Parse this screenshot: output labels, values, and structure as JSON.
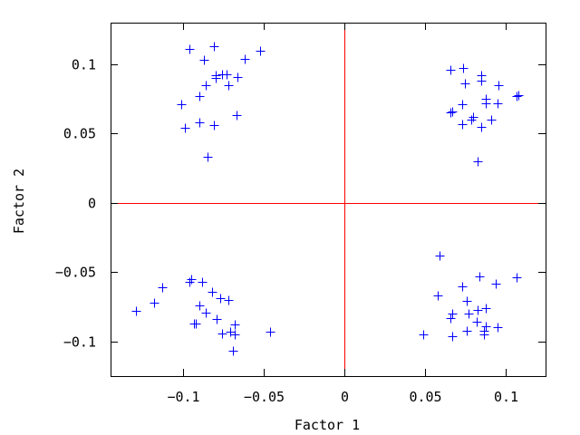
{
  "chart_data": {
    "type": "scatter",
    "title": "",
    "xlabel": "Factor 1",
    "ylabel": "Factor 2",
    "xlim": [
      -0.145,
      0.125
    ],
    "ylim": [
      -0.125,
      0.13
    ],
    "xticks": [
      {
        "value": -0.1,
        "label": "−0.1"
      },
      {
        "value": -0.05,
        "label": "−0.05"
      },
      {
        "value": 0,
        "label": "0"
      },
      {
        "value": 0.05,
        "label": "0.05"
      },
      {
        "value": 0.1,
        "label": "0.1"
      }
    ],
    "yticks": [
      {
        "value": 0.1,
        "label": "0.1"
      },
      {
        "value": 0.05,
        "label": "0.05"
      },
      {
        "value": 0,
        "label": "0"
      },
      {
        "value": -0.05,
        "label": "−0.05"
      },
      {
        "value": -0.1,
        "label": "−0.1"
      }
    ],
    "grid": false,
    "reference_lines": {
      "x": 0,
      "y": 0,
      "color": "#ff0000"
    },
    "marker": "+",
    "marker_color": "#0000ff",
    "series": [
      {
        "points": [
          [
            -0.096,
            0.111
          ],
          [
            -0.081,
            0.113
          ],
          [
            -0.052,
            0.11
          ],
          [
            -0.087,
            0.103
          ],
          [
            -0.062,
            0.104
          ],
          [
            -0.076,
            0.093
          ],
          [
            -0.073,
            0.093
          ],
          [
            -0.08,
            0.092
          ],
          [
            -0.066,
            0.091
          ],
          [
            -0.08,
            0.09
          ],
          [
            -0.086,
            0.085
          ],
          [
            -0.072,
            0.085
          ],
          [
            -0.09,
            0.077
          ],
          [
            -0.101,
            0.071
          ],
          [
            -0.067,
            0.063
          ],
          [
            -0.09,
            0.058
          ],
          [
            -0.099,
            0.054
          ],
          [
            -0.081,
            0.056
          ],
          [
            -0.085,
            0.033
          ],
          [
            0.066,
            0.096
          ],
          [
            0.074,
            0.097
          ],
          [
            0.085,
            0.092
          ],
          [
            0.085,
            0.088
          ],
          [
            0.075,
            0.086
          ],
          [
            0.096,
            0.085
          ],
          [
            0.107,
            0.077
          ],
          [
            0.108,
            0.078
          ],
          [
            0.088,
            0.075
          ],
          [
            0.073,
            0.071
          ],
          [
            0.088,
            0.072
          ],
          [
            0.095,
            0.072
          ],
          [
            0.067,
            0.066
          ],
          [
            0.066,
            0.065
          ],
          [
            0.08,
            0.062
          ],
          [
            0.079,
            0.06
          ],
          [
            0.091,
            0.06
          ],
          [
            0.073,
            0.057
          ],
          [
            0.085,
            0.055
          ],
          [
            0.083,
            0.03
          ],
          [
            -0.095,
            -0.055
          ],
          [
            -0.096,
            -0.057
          ],
          [
            -0.088,
            -0.057
          ],
          [
            -0.113,
            -0.061
          ],
          [
            -0.082,
            -0.064
          ],
          [
            -0.077,
            -0.069
          ],
          [
            -0.072,
            -0.07
          ],
          [
            -0.118,
            -0.072
          ],
          [
            -0.09,
            -0.074
          ],
          [
            -0.129,
            -0.078
          ],
          [
            -0.086,
            -0.079
          ],
          [
            -0.079,
            -0.084
          ],
          [
            -0.092,
            -0.087
          ],
          [
            -0.093,
            -0.087
          ],
          [
            -0.068,
            -0.088
          ],
          [
            -0.071,
            -0.093
          ],
          [
            -0.076,
            -0.094
          ],
          [
            -0.046,
            -0.093
          ],
          [
            -0.068,
            -0.095
          ],
          [
            -0.069,
            -0.107
          ],
          [
            0.059,
            -0.038
          ],
          [
            0.084,
            -0.053
          ],
          [
            0.107,
            -0.054
          ],
          [
            0.073,
            -0.06
          ],
          [
            0.094,
            -0.058
          ],
          [
            0.058,
            -0.067
          ],
          [
            0.076,
            -0.071
          ],
          [
            0.088,
            -0.076
          ],
          [
            0.083,
            -0.077
          ],
          [
            0.067,
            -0.08
          ],
          [
            0.066,
            -0.083
          ],
          [
            0.077,
            -0.08
          ],
          [
            0.082,
            -0.086
          ],
          [
            0.088,
            -0.089
          ],
          [
            0.076,
            -0.092
          ],
          [
            0.095,
            -0.09
          ],
          [
            0.087,
            -0.092
          ],
          [
            0.087,
            -0.095
          ],
          [
            0.049,
            -0.095
          ],
          [
            0.067,
            -0.096
          ]
        ]
      }
    ]
  }
}
